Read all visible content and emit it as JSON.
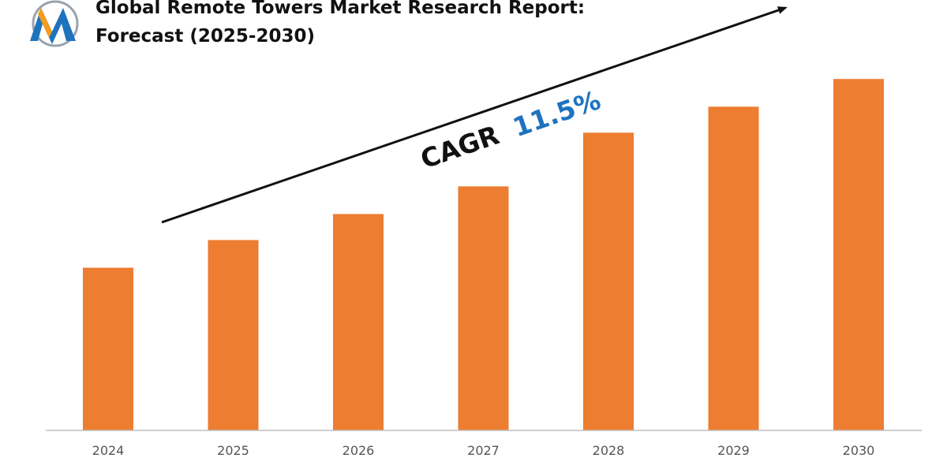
{
  "header": {
    "title_line1": "Global Remote Towers Market Research Report:",
    "title_line2": "Forecast (2025-2030)",
    "logo_icon": "m-letter-logo-icon"
  },
  "annotation": {
    "label": "CAGR",
    "value": "11.5%",
    "label_color": "#111111",
    "value_color": "#1e73be"
  },
  "colors": {
    "bar": "#ed7d31",
    "axis": "#bfbfbf",
    "arrow": "#111111"
  },
  "chart_data": {
    "type": "bar",
    "categories": [
      "2024",
      "2025",
      "2026",
      "2027",
      "2028",
      "2029",
      "2030"
    ],
    "values": [
      1.0,
      1.17,
      1.33,
      1.5,
      1.83,
      1.99,
      2.16
    ],
    "ylim": [
      0,
      2.4
    ],
    "grid": false,
    "legend": "none",
    "title": "Global Remote Towers Market Research Report: Forecast (2025-2030)"
  }
}
